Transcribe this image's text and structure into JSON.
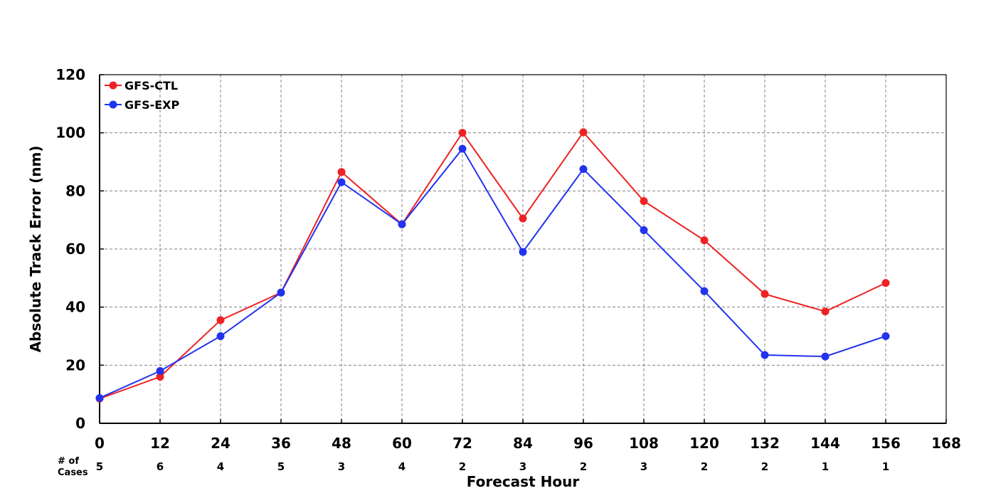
{
  "chart_data": {
    "type": "line",
    "xlabel": "Forecast Hour",
    "ylabel": "Absolute Track Error (nm)",
    "xlim": [
      0,
      168
    ],
    "ylim": [
      0,
      120
    ],
    "x_ticks": [
      0,
      12,
      24,
      36,
      48,
      60,
      72,
      84,
      96,
      108,
      120,
      132,
      144,
      156,
      168
    ],
    "y_ticks": [
      0,
      20,
      40,
      60,
      80,
      100,
      120
    ],
    "grid": true,
    "legend_position": "top-left",
    "x": [
      0,
      12,
      24,
      36,
      48,
      60,
      72,
      84,
      96,
      108,
      120,
      132,
      144,
      156
    ],
    "series": [
      {
        "name": "GFS-CTL",
        "color": "#ee2222",
        "values": [
          8.5,
          16,
          35.5,
          45,
          86.5,
          68.5,
          100,
          70.5,
          100.2,
          76.5,
          63,
          44.5,
          38.5,
          48.3
        ]
      },
      {
        "name": "GFS-EXP",
        "color": "#2233ee",
        "values": [
          8.7,
          18,
          30,
          45,
          83,
          68.5,
          94.5,
          59,
          87.5,
          66.5,
          45.5,
          23.5,
          23,
          30
        ]
      }
    ],
    "cases_label": [
      "# of",
      "Cases"
    ],
    "cases": [
      5,
      6,
      4,
      5,
      3,
      4,
      2,
      3,
      2,
      3,
      2,
      2,
      1,
      1
    ]
  }
}
